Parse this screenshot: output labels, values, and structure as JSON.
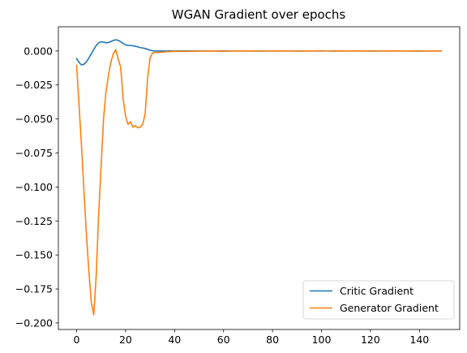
{
  "chart_data": {
    "type": "line",
    "title": "WGAN Gradient over epochs",
    "xlabel": "",
    "ylabel": "",
    "xlim": [
      -7.45,
      156.45
    ],
    "ylim": [
      -0.2048,
      0.0178
    ],
    "x_ticks": [
      0,
      20,
      40,
      60,
      80,
      100,
      120,
      140
    ],
    "x_tick_labels": [
      "0",
      "20",
      "40",
      "60",
      "80",
      "100",
      "120",
      "140"
    ],
    "y_ticks": [
      0.0,
      -0.025,
      -0.05,
      -0.075,
      -0.1,
      -0.125,
      -0.15,
      -0.175,
      -0.2
    ],
    "y_tick_labels": [
      "0.000",
      "−0.025",
      "−0.050",
      "−0.075",
      "−0.100",
      "−0.125",
      "−0.150",
      "−0.175",
      "−0.200"
    ],
    "grid": false,
    "legend_position": "lower-right",
    "series": [
      {
        "name": "Critic Gradient",
        "color": "#1f77b4",
        "points": [
          [
            0,
            -0.0055
          ],
          [
            1,
            -0.0085
          ],
          [
            2,
            -0.0102
          ],
          [
            3,
            -0.0098
          ],
          [
            4,
            -0.008
          ],
          [
            5,
            -0.0052
          ],
          [
            6,
            -0.002
          ],
          [
            7,
            0.001
          ],
          [
            8,
            0.004
          ],
          [
            9,
            0.006
          ],
          [
            10,
            0.0068
          ],
          [
            11,
            0.0065
          ],
          [
            12,
            0.006
          ],
          [
            13,
            0.0062
          ],
          [
            14,
            0.007
          ],
          [
            15,
            0.0078
          ],
          [
            16,
            0.0082
          ],
          [
            17,
            0.0078
          ],
          [
            18,
            0.0068
          ],
          [
            19,
            0.0055
          ],
          [
            20,
            0.0045
          ],
          [
            21,
            0.0042
          ],
          [
            22,
            0.004
          ],
          [
            23,
            0.0038
          ],
          [
            24,
            0.0035
          ],
          [
            25,
            0.003
          ],
          [
            26,
            0.0025
          ],
          [
            27,
            0.0022
          ],
          [
            28,
            0.0018
          ],
          [
            29,
            0.0012
          ],
          [
            30,
            0.0006
          ],
          [
            31,
            0.0002
          ],
          [
            32,
            0.0
          ],
          [
            33,
            0.0
          ],
          [
            34,
            0.0
          ],
          [
            35,
            0.0
          ],
          [
            40,
            0.0
          ],
          [
            50,
            0.0
          ],
          [
            60,
            0.0
          ],
          [
            70,
            0.0
          ],
          [
            80,
            0.0
          ],
          [
            90,
            0.0
          ],
          [
            100,
            0.0
          ],
          [
            110,
            0.0
          ],
          [
            120,
            0.0
          ],
          [
            130,
            0.0
          ],
          [
            140,
            0.0
          ],
          [
            149,
            0.0
          ]
        ]
      },
      {
        "name": "Generator Gradient",
        "color": "#ff7f0e",
        "points": [
          [
            0,
            -0.0105
          ],
          [
            1,
            -0.04
          ],
          [
            2,
            -0.07
          ],
          [
            3,
            -0.103
          ],
          [
            4,
            -0.135
          ],
          [
            5,
            -0.162
          ],
          [
            6,
            -0.185
          ],
          [
            7,
            -0.194
          ],
          [
            8,
            -0.165
          ],
          [
            9,
            -0.12
          ],
          [
            10,
            -0.085
          ],
          [
            11,
            -0.05
          ],
          [
            12,
            -0.03
          ],
          [
            13,
            -0.018
          ],
          [
            14,
            -0.008
          ],
          [
            15,
            -0.002
          ],
          [
            16,
            0.001
          ],
          [
            17,
            -0.006
          ],
          [
            18,
            -0.012
          ],
          [
            19,
            -0.035
          ],
          [
            20,
            -0.048
          ],
          [
            21,
            -0.054
          ],
          [
            22,
            -0.052
          ],
          [
            23,
            -0.056
          ],
          [
            24,
            -0.055
          ],
          [
            25,
            -0.0565
          ],
          [
            26,
            -0.056
          ],
          [
            27,
            -0.054
          ],
          [
            28,
            -0.046
          ],
          [
            29,
            -0.02
          ],
          [
            30,
            -0.005
          ],
          [
            31,
            -0.0015
          ],
          [
            32,
            -0.001
          ],
          [
            33,
            -0.0012
          ],
          [
            34,
            -0.0008
          ],
          [
            35,
            -0.001
          ],
          [
            36,
            -0.0006
          ],
          [
            37,
            -0.0004
          ],
          [
            38,
            -0.0005
          ],
          [
            40,
            -0.0002
          ],
          [
            45,
            -0.0003
          ],
          [
            50,
            -0.0001
          ],
          [
            55,
            0.0
          ],
          [
            60,
            -0.0002
          ],
          [
            65,
            0.0001
          ],
          [
            70,
            0.0
          ],
          [
            75,
            -0.0001
          ],
          [
            80,
            0.0
          ],
          [
            85,
            0.0001
          ],
          [
            90,
            -0.0001
          ],
          [
            95,
            0.0
          ],
          [
            100,
            0.0002
          ],
          [
            105,
            -0.0001
          ],
          [
            110,
            0.0
          ],
          [
            115,
            0.0001
          ],
          [
            120,
            -0.0001
          ],
          [
            125,
            0.0
          ],
          [
            130,
            0.0001
          ],
          [
            135,
            0.0
          ],
          [
            140,
            -0.0001
          ],
          [
            145,
            0.0001
          ],
          [
            149,
            0.0
          ]
        ]
      }
    ]
  }
}
